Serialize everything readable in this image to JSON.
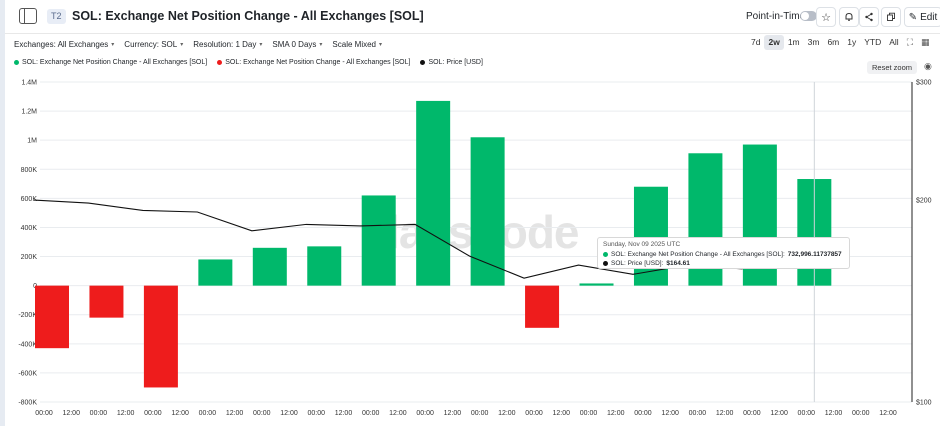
{
  "header": {
    "tier": "T2",
    "title": "SOL: Exchange Net Position Change - All Exchanges [SOL]",
    "point_in_time_label": "Point-in-Time",
    "edit_label": "Edit"
  },
  "controls": [
    {
      "label": "Exchanges: All Exchanges"
    },
    {
      "label": "Currency: SOL"
    },
    {
      "label": "Resolution: 1 Day"
    },
    {
      "label": "SMA 0 Days"
    },
    {
      "label": "Scale Mixed"
    }
  ],
  "ranges": [
    "7d",
    "2w",
    "1m",
    "3m",
    "6m",
    "1y",
    "YTD",
    "All"
  ],
  "active_range": "2w",
  "legend": [
    {
      "label": "SOL: Exchange Net Position Change - All Exchanges [SOL]",
      "color": "#00b86b"
    },
    {
      "label": "SOL: Exchange Net Position Change - All Exchanges [SOL]",
      "color": "#ee1c1c"
    },
    {
      "label": "SOL: Price [USD]",
      "color": "#111111"
    }
  ],
  "reset_zoom_label": "Reset zoom",
  "watermark": "glassnode",
  "tooltip": {
    "date": "Sunday, Nov 09 2025 UTC",
    "net_label": "SOL: Exchange Net Position Change - All Exchanges [SOL]:",
    "net_value": "732,996.11737857",
    "price_label": "SOL: Price [USD]:",
    "price_value": "$164.61"
  },
  "chart_data": {
    "type": "bar",
    "title": "SOL: Exchange Net Position Change - All Exchanges [SOL]",
    "x_tick_labels": [
      "00:00",
      "12:00",
      "00:00",
      "12:00",
      "00:00",
      "12:00",
      "00:00",
      "12:00",
      "00:00",
      "12:00",
      "00:00",
      "12:00",
      "00:00",
      "12:00",
      "00:00",
      "12:00",
      "00:00",
      "12:00",
      "00:00",
      "12:00",
      "00:00",
      "12:00",
      "00:00",
      "12:00",
      "00:00",
      "12:00",
      "00:00",
      "12:00",
      "00:00",
      "12:00",
      "00:00",
      "12:00"
    ],
    "y_left": {
      "min": -800000,
      "max": 1400000,
      "ticks": [
        -800000,
        -600000,
        -400000,
        -200000,
        0,
        200000,
        400000,
        600000,
        800000,
        1000000,
        1200000,
        1400000
      ],
      "tick_labels": [
        "-800K",
        "-600K",
        "-400K",
        "-200K",
        "0",
        "200K",
        "400K",
        "600K",
        "800K",
        "1M",
        "1.2M",
        "1.4M"
      ]
    },
    "y_right": {
      "scale": "log",
      "min": 100,
      "max": 300,
      "tick_labels": [
        {
          "value": 100,
          "label": "$100"
        },
        {
          "value": 200,
          "label": "$200"
        },
        {
          "value": 300,
          "label": "$300"
        }
      ]
    },
    "series": [
      {
        "name": "SOL: Exchange Net Position Change - All Exchanges [SOL]",
        "kind": "bar",
        "values": [
          -430000,
          -220000,
          -700000,
          180000,
          260000,
          270000,
          620000,
          1270000,
          1020000,
          -290000,
          15000,
          680000,
          910000,
          970000,
          732996.12
        ],
        "positive_color": "#00b86b",
        "negative_color": "#ee1c1c"
      },
      {
        "name": "SOL: Price [USD]",
        "kind": "line",
        "color": "#111111",
        "values": [
          200,
          198,
          193,
          192,
          180,
          184,
          183,
          184,
          165,
          153,
          160,
          155,
          160,
          158,
          164.61
        ]
      }
    ]
  }
}
